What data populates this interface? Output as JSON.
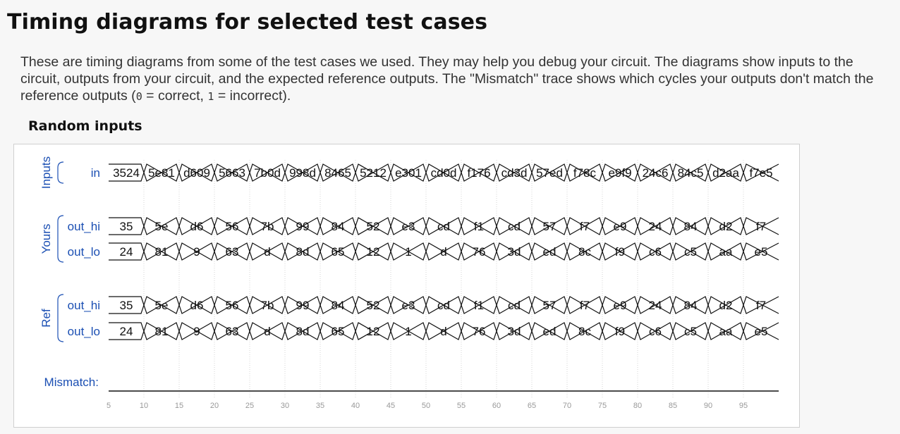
{
  "page": {
    "title": "Timing diagrams for selected test cases",
    "intro_before": "These are timing diagrams from some of the test cases we used. They may help you debug your circuit. The diagrams show inputs to the circuit, outputs from your circuit, and the expected reference outputs. The \"Mismatch\" trace shows which cycles your outputs don't match the reference outputs (",
    "code_correct": "0",
    "intro_mid1": " = correct, ",
    "code_incorrect": "1",
    "intro_after": " = incorrect).",
    "section_title": "Random inputs"
  },
  "wave": {
    "groups": [
      {
        "label": "Inputs"
      },
      {
        "label": "Yours"
      },
      {
        "label": "Ref"
      }
    ],
    "signals": [
      {
        "label": "in",
        "values": [
          "3524",
          "5e81",
          "d609",
          "5663",
          "7b0d",
          "998d",
          "8465",
          "5212",
          "e301",
          "cd0d",
          "f176",
          "cd3d",
          "57ed",
          "f78c",
          "e9f9",
          "24c6",
          "84c5",
          "d2aa",
          "f7e5"
        ]
      },
      {
        "label": "out_hi",
        "values": [
          "35",
          "5e",
          "d6",
          "56",
          "7b",
          "99",
          "84",
          "52",
          "e3",
          "cd",
          "f1",
          "cd",
          "57",
          "f7",
          "e9",
          "24",
          "84",
          "d2",
          "f7"
        ]
      },
      {
        "label": "out_lo",
        "values": [
          "24",
          "81",
          "9",
          "63",
          "d",
          "8d",
          "65",
          "12",
          "1",
          "d",
          "76",
          "3d",
          "ed",
          "8c",
          "f9",
          "c6",
          "c5",
          "aa",
          "e5"
        ]
      },
      {
        "label": "out_hi",
        "values": [
          "35",
          "5e",
          "d6",
          "56",
          "7b",
          "99",
          "84",
          "52",
          "e3",
          "cd",
          "f1",
          "cd",
          "57",
          "f7",
          "e9",
          "24",
          "84",
          "d2",
          "f7"
        ]
      },
      {
        "label": "out_lo",
        "values": [
          "24",
          "81",
          "9",
          "63",
          "d",
          "8d",
          "65",
          "12",
          "1",
          "d",
          "76",
          "3d",
          "ed",
          "8c",
          "f9",
          "c6",
          "c5",
          "aa",
          "e5"
        ]
      }
    ],
    "mismatch": {
      "label": "Mismatch:",
      "value": 0
    },
    "time_ticks": [
      5,
      10,
      15,
      20,
      25,
      30,
      35,
      40,
      45,
      50,
      55,
      60,
      65,
      70,
      75,
      80,
      85,
      90,
      95
    ],
    "time_range": [
      5,
      100
    ],
    "colors": {
      "label": "#1b4fb3",
      "trace": "#111111",
      "grid": "#d6d6d6",
      "tick": "#999999"
    }
  }
}
